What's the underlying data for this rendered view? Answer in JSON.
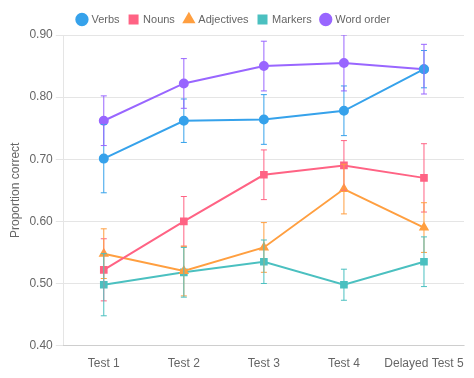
{
  "chart_data": {
    "type": "line",
    "categories": [
      "Test 1",
      "Test 2",
      "Test 3",
      "Test 4",
      "Delayed Test 5"
    ],
    "series": [
      {
        "name": "Verbs",
        "marker": "circle",
        "values": [
          0.701,
          0.762,
          0.764,
          0.778,
          0.845
        ],
        "errors": [
          0.055,
          0.035,
          0.04,
          0.04,
          0.03
        ]
      },
      {
        "name": "Nouns",
        "marker": "square",
        "values": [
          0.522,
          0.6,
          0.675,
          0.69,
          0.67
        ],
        "errors": [
          0.05,
          0.04,
          0.04,
          0.04,
          0.055
        ]
      },
      {
        "name": "Adjectives",
        "marker": "triangle",
        "values": [
          0.548,
          0.52,
          0.558,
          0.652,
          0.59
        ],
        "errors": [
          0.04,
          0.04,
          0.04,
          0.04,
          0.04
        ]
      },
      {
        "name": "Markers",
        "marker": "square",
        "values": [
          0.498,
          0.518,
          0.535,
          0.498,
          0.535
        ],
        "errors": [
          0.05,
          0.04,
          0.035,
          0.025,
          0.04
        ]
      },
      {
        "name": "Word order",
        "marker": "circle",
        "values": [
          0.762,
          0.822,
          0.85,
          0.855,
          0.845
        ],
        "errors": [
          0.04,
          0.04,
          0.04,
          0.045,
          0.04
        ]
      }
    ],
    "ylabel": "Proportion correct",
    "ylim": [
      0.4,
      0.9
    ],
    "yticks": [
      {
        "value": 0.4,
        "label": "0.40"
      },
      {
        "value": 0.5,
        "label": "0.50"
      },
      {
        "value": 0.6,
        "label": "0.60"
      },
      {
        "value": 0.7,
        "label": "0.70"
      },
      {
        "value": 0.8,
        "label": "0.80"
      },
      {
        "value": 0.9,
        "label": "0.90"
      }
    ],
    "grid": true,
    "legend": "top"
  }
}
